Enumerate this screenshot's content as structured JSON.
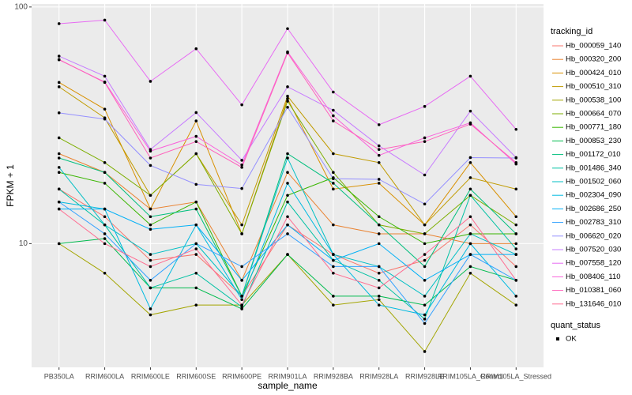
{
  "chart_data": {
    "type": "line",
    "x_label": "sample_name",
    "y_label": "FPKM + 1",
    "log_y": true,
    "grid": true,
    "categories": [
      "PB350LA",
      "RRIM600LA",
      "RRIM600LE",
      "RRIM600SE",
      "RRIM600PE",
      "RRIM901LA",
      "RRIM928BA",
      "RRIM928LA",
      "RRIM928LE",
      "RRIM105LA_Control",
      "RRIM105LA_Stressed"
    ],
    "ylim": [
      3.0,
      103
    ],
    "yticks": [
      10,
      100
    ],
    "legend_title": "tracking_id",
    "series": [
      {
        "name": "Hb_000059_140",
        "color": "#F8766D",
        "values": [
          17,
          13,
          8.5,
          9,
          6,
          12,
          9,
          7.5,
          8.5,
          12,
          8
        ]
      },
      {
        "name": "Hb_000320_200",
        "color": "#EA8331",
        "values": [
          24,
          20,
          14,
          15,
          7,
          20,
          12,
          11,
          11,
          10,
          10
        ]
      },
      {
        "name": "Hb_000424_010",
        "color": "#D89000",
        "values": [
          48,
          37,
          14,
          33,
          11,
          41,
          17,
          18,
          12,
          22,
          13
        ]
      },
      {
        "name": "Hb_000510_310",
        "color": "#C09B00",
        "values": [
          46,
          34,
          16,
          24,
          12,
          42,
          24,
          22,
          12,
          19,
          17
        ]
      },
      {
        "name": "Hb_000538_100",
        "color": "#A3A500",
        "values": [
          10,
          7.5,
          5,
          5.5,
          5.5,
          9,
          5.5,
          5.8,
          3.5,
          7.5,
          5.5
        ]
      },
      {
        "name": "Hb_000664_070",
        "color": "#7CAE00",
        "values": [
          28,
          22,
          16,
          24,
          11,
          40,
          20,
          12,
          11,
          16,
          12
        ]
      },
      {
        "name": "Hb_000771_180",
        "color": "#39B600",
        "values": [
          20,
          18,
          12,
          15,
          6,
          16,
          19,
          13,
          10,
          11,
          11
        ]
      },
      {
        "name": "Hb_000853_230",
        "color": "#00BB4E",
        "values": [
          10,
          10.5,
          6.5,
          6.5,
          5.3,
          9,
          6,
          6,
          5.5,
          8,
          7
        ]
      },
      {
        "name": "Hb_001172_010",
        "color": "#00BF7D",
        "values": [
          23,
          20,
          13,
          14,
          6,
          24,
          18,
          12,
          8,
          17,
          11
        ]
      },
      {
        "name": "Hb_001486_340",
        "color": "#00C1A3",
        "values": [
          17,
          12,
          6.5,
          7.5,
          5.4,
          15,
          8.5,
          7,
          4.8,
          16,
          9.5
        ]
      },
      {
        "name": "Hb_001502_060",
        "color": "#00BFC4",
        "values": [
          21,
          12,
          9,
          10,
          6,
          23,
          9,
          8,
          6,
          11,
          9
        ]
      },
      {
        "name": "Hb_002304_090",
        "color": "#00BAE0",
        "values": [
          15,
          14,
          5.3,
          12,
          5.8,
          18,
          9,
          5.5,
          5,
          10,
          6
        ]
      },
      {
        "name": "Hb_002686_250",
        "color": "#00B0F6",
        "values": [
          14,
          14,
          11.5,
          12,
          7,
          12,
          8.5,
          10,
          7,
          9,
          9
        ]
      },
      {
        "name": "Hb_002783_310",
        "color": "#35A2FF",
        "values": [
          15,
          11,
          7,
          10,
          8,
          11,
          8,
          8,
          4.6,
          9,
          7
        ]
      },
      {
        "name": "Hb_006620_020",
        "color": "#9590FF",
        "values": [
          35.7,
          33.6,
          21.4,
          17.8,
          17.1,
          37.7,
          18.8,
          18.7,
          14.7,
          23.1,
          23
        ]
      },
      {
        "name": "Hb_007520_030",
        "color": "#C77CFF",
        "values": [
          62,
          51,
          25,
          35.8,
          22.5,
          46,
          36.6,
          25.9,
          19.5,
          36.3,
          23.1
        ]
      },
      {
        "name": "Hb_007558_120",
        "color": "#E76BF3",
        "values": [
          85,
          88,
          48.5,
          66.6,
          38.6,
          81,
          43.7,
          31.8,
          38,
          51,
          30.4
        ]
      },
      {
        "name": "Hb_008406_110",
        "color": "#FA62DB",
        "values": [
          59.8,
          48.2,
          24.6,
          28.4,
          21.5,
          64.6,
          34.7,
          23.6,
          28,
          32.4,
          21.7
        ]
      },
      {
        "name": "Hb_010381_060",
        "color": "#FF62BC",
        "values": [
          60,
          48,
          23,
          27,
          21,
          64,
          33,
          25,
          27,
          32,
          22
        ]
      },
      {
        "name": "Hb_131646_010",
        "color": "#FF6C91",
        "values": [
          14,
          10,
          8,
          9.5,
          5.5,
          13,
          7.5,
          6.5,
          9,
          13,
          7
        ]
      }
    ],
    "point_legend": {
      "title": "quant_status",
      "label": "OK",
      "color": "#000000"
    }
  }
}
